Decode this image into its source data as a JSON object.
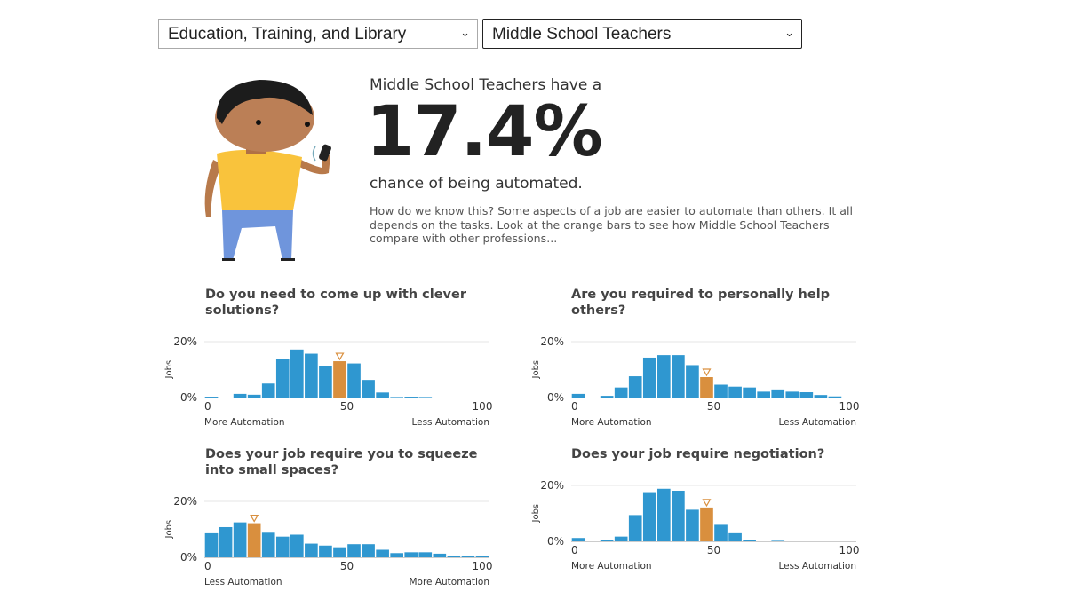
{
  "selectors": {
    "category": "Education, Training, and Library",
    "occupation": "Middle School Teachers"
  },
  "summary": {
    "lead": "Middle School Teachers have a",
    "percent": "17.4%",
    "chance": "chance of being automated.",
    "explanation": "How do we know this? Some aspects of a job are easier to automate than others. It all depends on the tasks. Look at the orange bars to see how Middle School Teachers compare with other professions..."
  },
  "colors": {
    "bar": "#2f97d0",
    "highlight": "#d98f3e",
    "grid": "#e6e6e6"
  },
  "chart_data": [
    {
      "type": "bar",
      "title": "Do you need to come up with clever solutions?",
      "ylabel": "Jobs",
      "ylim": [
        0,
        20
      ],
      "yticks": [
        "0%",
        "20%"
      ],
      "xticks": [
        "0",
        "50",
        "100"
      ],
      "xlim": [
        0,
        100
      ],
      "bin_width": 5,
      "left_label": "More Automation",
      "right_label": "Less Automation",
      "highlight_bin": 9,
      "values": [
        0.3,
        0,
        1.3,
        1,
        5,
        13.8,
        17.2,
        15.7,
        11.3,
        13,
        12.2,
        6.3,
        1.8,
        0.2,
        0.3,
        0.2,
        0,
        0,
        0,
        0
      ]
    },
    {
      "type": "bar",
      "title": "Are you required to personally help others?",
      "ylabel": "Jobs",
      "ylim": [
        0,
        20
      ],
      "yticks": [
        "0%",
        "20%"
      ],
      "xticks": [
        "0",
        "50",
        "100"
      ],
      "xlim": [
        0,
        100
      ],
      "bin_width": 5,
      "left_label": "More Automation",
      "right_label": "Less Automation",
      "highlight_bin": 9,
      "values": [
        1.3,
        0,
        0.6,
        3.6,
        7.6,
        14.3,
        15.2,
        15.2,
        11.6,
        7.3,
        4.6,
        3.9,
        3.6,
        2.1,
        2.9,
        2.1,
        1.9,
        0.9,
        0.4,
        0
      ]
    },
    {
      "type": "bar",
      "title": "Does your job require you to squeeze into small spaces?",
      "ylabel": "Jobs",
      "ylim": [
        0,
        20
      ],
      "yticks": [
        "0%",
        "20%"
      ],
      "xticks": [
        "0",
        "50",
        "100"
      ],
      "xlim": [
        0,
        100
      ],
      "bin_width": 5,
      "left_label": "Less Automation",
      "right_label": "More Automation",
      "highlight_bin": 3,
      "values": [
        8.6,
        10.8,
        12.5,
        12.2,
        8.8,
        7.4,
        8.1,
        4.9,
        4.2,
        3.6,
        4.7,
        4.7,
        2.7,
        1.5,
        1.8,
        1.8,
        1.3,
        0.4,
        0.4,
        0.4
      ]
    },
    {
      "type": "bar",
      "title": "Does your job require negotiation?",
      "ylabel": "Jobs",
      "ylim": [
        0,
        20
      ],
      "yticks": [
        "0%",
        "20%"
      ],
      "xticks": [
        "0",
        "50",
        "100"
      ],
      "xlim": [
        0,
        100
      ],
      "bin_width": 5,
      "left_label": "More Automation",
      "right_label": "Less Automation",
      "highlight_bin": 9,
      "values": [
        1.2,
        0,
        0.4,
        1.7,
        9.4,
        17.6,
        18.8,
        18.1,
        11.3,
        12.1,
        5.9,
        2.9,
        0.4,
        0,
        0.2,
        0,
        0,
        0,
        0,
        0
      ]
    }
  ]
}
